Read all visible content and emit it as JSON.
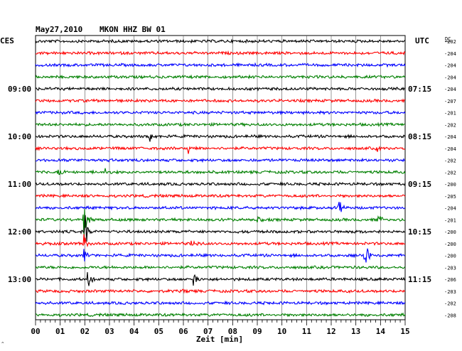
{
  "header": {
    "date": "May27,2010",
    "station": "MKON HHZ BW 01",
    "left_zone": "CES",
    "right_zone": "UTC",
    "dc_label": "DC"
  },
  "colors": {
    "cycle": [
      "#000000",
      "#ff0000",
      "#0000ff",
      "#008000"
    ],
    "grid": "#000000",
    "background": "#ffffff"
  },
  "chart_data": {
    "type": "line",
    "x_axis": {
      "label": "Zeit [min]",
      "range": [
        0,
        15
      ],
      "ticks": [
        "00",
        "01",
        "02",
        "03",
        "04",
        "05",
        "06",
        "07",
        "08",
        "09",
        "10",
        "11",
        "12",
        "13",
        "14",
        "15"
      ]
    },
    "left_time_labels": [
      {
        "trace": 4,
        "label": "09:00"
      },
      {
        "trace": 8,
        "label": "10:00"
      },
      {
        "trace": 12,
        "label": "11:00"
      },
      {
        "trace": 16,
        "label": "12:00"
      },
      {
        "trace": 20,
        "label": "13:00"
      }
    ],
    "right_time_labels": [
      {
        "trace": 4,
        "label": "07:15"
      },
      {
        "trace": 8,
        "label": "08:15"
      },
      {
        "trace": 12,
        "label": "09:15"
      },
      {
        "trace": 16,
        "label": "10:15"
      },
      {
        "trace": 20,
        "label": "11:15"
      }
    ],
    "dc_offsets": [
      "-202",
      "-204",
      "-204",
      "-204",
      "-204",
      "-207",
      "-201",
      "-202",
      "-204",
      "-204",
      "-202",
      "-202",
      "-200",
      "-205",
      "-204",
      "-201",
      "-200",
      "-200",
      "-200",
      "-203",
      "-206",
      "-203",
      "-202",
      "-208"
    ],
    "trace_count": 24,
    "events": [
      {
        "trace": 8,
        "minute": 4.6,
        "amplitude": 1.1
      },
      {
        "trace": 9,
        "minute": 6.2,
        "amplitude": 0.6
      },
      {
        "trace": 9,
        "minute": 13.8,
        "amplitude": 0.5
      },
      {
        "trace": 11,
        "minute": 0.9,
        "amplitude": 0.5
      },
      {
        "trace": 11,
        "minute": 2.8,
        "amplitude": 0.4
      },
      {
        "trace": 14,
        "minute": 12.3,
        "amplitude": 0.9
      },
      {
        "trace": 15,
        "minute": 1.95,
        "amplitude": 2.2
      },
      {
        "trace": 15,
        "minute": 9.0,
        "amplitude": 0.8
      },
      {
        "trace": 15,
        "minute": 13.9,
        "amplitude": 0.9
      },
      {
        "trace": 16,
        "minute": 2.0,
        "amplitude": 2.4
      },
      {
        "trace": 17,
        "minute": 1.95,
        "amplitude": 1.2
      },
      {
        "trace": 17,
        "minute": 6.3,
        "amplitude": 0.5
      },
      {
        "trace": 18,
        "minute": 1.95,
        "amplitude": 1.0
      },
      {
        "trace": 18,
        "minute": 13.35,
        "amplitude": 1.9
      },
      {
        "trace": 20,
        "minute": 2.1,
        "amplitude": 1.1
      },
      {
        "trace": 20,
        "minute": 6.4,
        "amplitude": 0.8
      },
      {
        "trace": 21,
        "minute": 6.0,
        "amplitude": 0.4
      }
    ],
    "grid": true
  }
}
